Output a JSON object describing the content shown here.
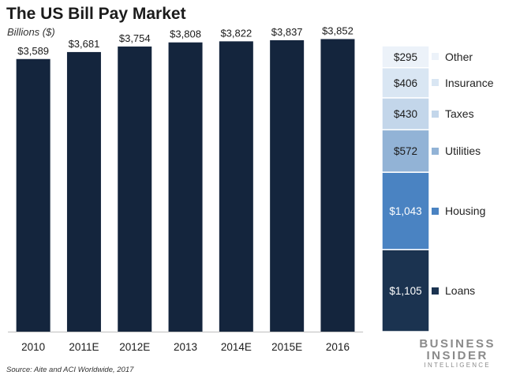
{
  "title": "The US Bill Pay Market",
  "subtitle": "Billions ($)",
  "source": "Source: Aite and ACI Worldwide, 2017",
  "brand": {
    "line1": "BUSINESS",
    "line2": "INSIDER",
    "line3": "INTELLIGENCE"
  },
  "chart_data": [
    {
      "type": "bar",
      "categories": [
        "2010",
        "2011E",
        "2012E",
        "2013",
        "2014E",
        "2015E",
        "2016"
      ],
      "values": [
        3589,
        3681,
        3754,
        3808,
        3822,
        3837,
        3852
      ],
      "data_labels": [
        "$3,589",
        "$3,681",
        "$3,754",
        "$3,808",
        "$3,822",
        "$3,837",
        "$3,852"
      ],
      "ylim": [
        0,
        4200
      ],
      "bar_color": "#14253d",
      "grid": false
    },
    {
      "type": "stacked_bar",
      "segments": [
        {
          "name": "Loans",
          "value": 1105,
          "label": "$1,105",
          "color": "#1b3350"
        },
        {
          "name": "Housing",
          "value": 1043,
          "label": "$1,043",
          "color": "#4a83c2"
        },
        {
          "name": "Utilities",
          "value": 572,
          "label": "$572",
          "color": "#92b3d6"
        },
        {
          "name": "Taxes",
          "value": 430,
          "label": "$430",
          "color": "#c3d6ea"
        },
        {
          "name": "Insurance",
          "value": 406,
          "label": "$406",
          "color": "#d9e6f3"
        },
        {
          "name": "Other",
          "value": 295,
          "label": "$295",
          "color": "#ecf2f9"
        }
      ],
      "legend_placement": "right"
    }
  ]
}
